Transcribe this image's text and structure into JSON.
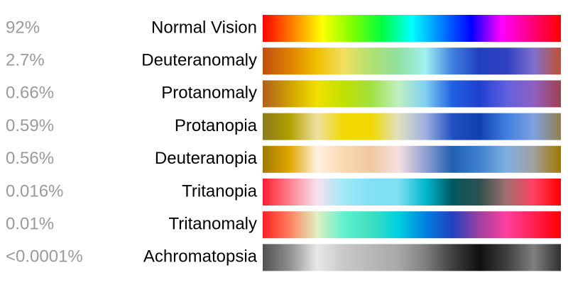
{
  "rows": [
    {
      "percent": "92%",
      "label": "Normal Vision",
      "colors": [
        "#ff0000",
        "#ff8000",
        "#ffff00",
        "#80ff00",
        "#00ff40",
        "#00ffff",
        "#0080ff",
        "#0000ff",
        "#ff00ff",
        "#ff0080",
        "#ff0000"
      ]
    },
    {
      "percent": "2.7%",
      "label": "Deuteranomaly",
      "colors": [
        "#c05010",
        "#e08000",
        "#f0c000",
        "#f0e060",
        "#b0e070",
        "#90e0a0",
        "#a0f0f0",
        "#4080e0",
        "#2040c0",
        "#3040c0",
        "#8070d0",
        "#c05030"
      ]
    },
    {
      "percent": "0.66%",
      "label": "Protanomaly",
      "colors": [
        "#b06020",
        "#d0a000",
        "#f0e000",
        "#c0e000",
        "#a0e040",
        "#c0f0c0",
        "#80d0f0",
        "#2060e0",
        "#2040d0",
        "#6060e0",
        "#9060c0",
        "#a04050"
      ]
    },
    {
      "percent": "0.59%",
      "label": "Protanopia",
      "colors": [
        "#8a7a20",
        "#b0a000",
        "#f0e0a0",
        "#f0d800",
        "#f0d800",
        "#e0e0c0",
        "#a0b0e0",
        "#2050c0",
        "#1040b0",
        "#4080e0",
        "#80a0e0",
        "#908050"
      ]
    },
    {
      "percent": "0.56%",
      "label": "Deuteranopia",
      "colors": [
        "#a07800",
        "#e0a800",
        "#fff0e0",
        "#f8d8b0",
        "#f0c8a0",
        "#f8e0e0",
        "#90a0d0",
        "#2060b0",
        "#4080d0",
        "#80b0e0",
        "#a0a0a0",
        "#a07800"
      ]
    },
    {
      "percent": "0.016%",
      "label": "Tritanopia",
      "colors": [
        "#ff2030",
        "#ff8090",
        "#f8e0f0",
        "#a0e8f8",
        "#80e0f8",
        "#80e0f0",
        "#00b8d0",
        "#005860",
        "#305050",
        "#a07070",
        "#ff4060",
        "#ff0000"
      ]
    },
    {
      "percent": "0.01%",
      "label": "Tritanomaly",
      "colors": [
        "#ff2020",
        "#ff8060",
        "#e0f0c0",
        "#60f0d0",
        "#40e0c0",
        "#00d0e0",
        "#0080e0",
        "#2040c0",
        "#a040a0",
        "#ff40a0",
        "#ff2050",
        "#ff0000"
      ]
    },
    {
      "percent": "<0.0001%",
      "label": "Achromatopsia",
      "colors": [
        "#505050",
        "#909090",
        "#e8e8e8",
        "#c8c8c8",
        "#b8b8b8",
        "#a8a8a8",
        "#808080",
        "#404040",
        "#101010",
        "#404040",
        "#808080",
        "#303030"
      ]
    }
  ]
}
